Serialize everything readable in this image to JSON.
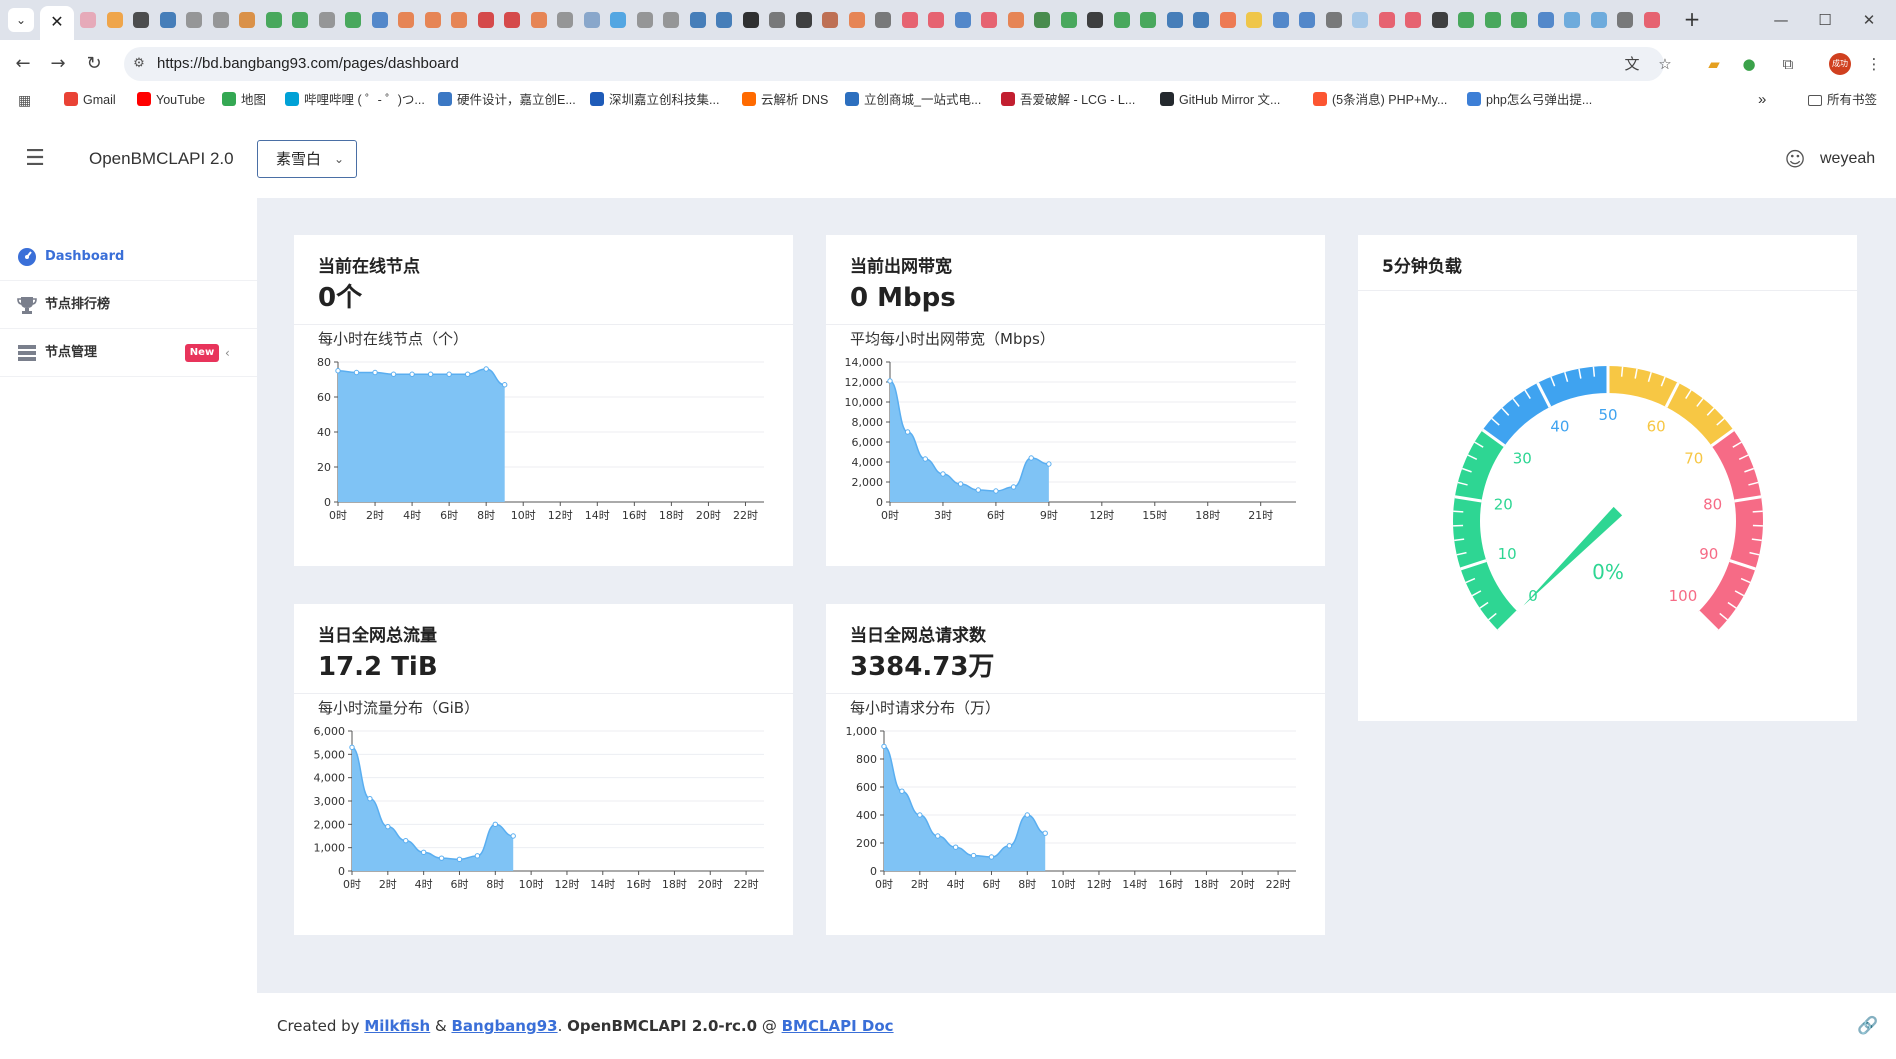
{
  "browser": {
    "tab_close": "✕",
    "tab_list": "⌄",
    "url": "https://bd.bangbang93.com/pages/dashboard",
    "profile_initial": "成功",
    "bookmarks": [
      {
        "label": "Gmail",
        "color": "#e94235"
      },
      {
        "label": "YouTube",
        "color": "#ff0000"
      },
      {
        "label": "地图",
        "color": "#34a853"
      },
      {
        "label": "哔哩哔哩 ( ゜- ゜)つ...",
        "color": "#00a1d6"
      },
      {
        "label": "硬件设计，嘉立创E...",
        "color": "#3b78c4"
      },
      {
        "label": "深圳嘉立创科技集...",
        "color": "#1e5bb8"
      },
      {
        "label": "云解析 DNS",
        "color": "#ff6a00"
      },
      {
        "label": "立创商城_一站式电...",
        "color": "#2c6fbf"
      },
      {
        "label": "吾爱破解 - LCG - L...",
        "color": "#c21f30"
      },
      {
        "label": "GitHub Mirror 文...",
        "color": "#24292e"
      },
      {
        "label": "(5条消息) PHP+My...",
        "color": "#fc5531"
      },
      {
        "label": "php怎么弓弹出提...",
        "color": "#3d7fd6"
      }
    ],
    "more_bookmarks": "»",
    "all_bookmarks": "所有书签"
  },
  "header": {
    "app_title": "OpenBMCLAPI 2.0",
    "theme_value": "素雪白",
    "user_name": "weyeah"
  },
  "sidebar": {
    "items": [
      {
        "label": "Dashboard",
        "icon": "dashboard-icon",
        "color": "#3a6fd8"
      },
      {
        "label": "节点排行榜",
        "icon": "trophy-icon",
        "color": "#7a7f8c"
      },
      {
        "label": "节点管理",
        "icon": "list-icon",
        "color": "#7a7f8c",
        "badge": "New"
      }
    ]
  },
  "cards": {
    "online_nodes": {
      "title": "当前在线节点",
      "value": "0个",
      "chart_title": "每小时在线节点（个）"
    },
    "bandwidth": {
      "title": "当前出网带宽",
      "value": "0 Mbps",
      "chart_title": "平均每小时出网带宽（Mbps）"
    },
    "load": {
      "title": "5分钟负载",
      "gauge_value": "0%",
      "gauge_percent": 0
    },
    "traffic": {
      "title": "当日全网总流量",
      "value": "17.2 TiB",
      "chart_title": "每小时流量分布（GiB）"
    },
    "requests": {
      "title": "当日全网总请求数",
      "value": "3384.73万",
      "chart_title": "每小时请求分布（万）"
    }
  },
  "chart_data": [
    {
      "type": "area",
      "x_ticks": [
        "0时",
        "2时",
        "4时",
        "6时",
        "8时",
        "10时",
        "12时",
        "14时",
        "16时",
        "18时",
        "20时",
        "22时"
      ],
      "x_max": 23,
      "x": [
        0,
        1,
        2,
        3,
        4,
        5,
        6,
        7,
        8,
        9
      ],
      "values": [
        75,
        74,
        74,
        73,
        73,
        73,
        73,
        73,
        76,
        67
      ],
      "ylim": [
        0,
        80
      ],
      "y_ticks": [
        "0",
        "20",
        "40",
        "60",
        "80"
      ],
      "color": "#7fc3f5"
    },
    {
      "type": "area",
      "x_ticks": [
        "0时",
        "3时",
        "6时",
        "9时",
        "12时",
        "15时",
        "18时",
        "21时"
      ],
      "x_max": 23,
      "x": [
        0,
        1,
        2,
        3,
        4,
        5,
        6,
        7,
        8,
        9
      ],
      "values": [
        12100,
        7000,
        4300,
        2800,
        1800,
        1200,
        1100,
        1500,
        4400,
        3800
      ],
      "ylim": [
        0,
        14000
      ],
      "y_ticks": [
        "0",
        "2,000",
        "4,000",
        "6,000",
        "8,000",
        "10,000",
        "12,000",
        "14,000"
      ],
      "color": "#7fc3f5"
    },
    {
      "type": "area",
      "x_ticks": [
        "0时",
        "2时",
        "4时",
        "6时",
        "8时",
        "10时",
        "12时",
        "14时",
        "16时",
        "18时",
        "20时",
        "22时"
      ],
      "x_max": 23,
      "x": [
        0,
        1,
        2,
        3,
        4,
        5,
        6,
        7,
        8,
        9
      ],
      "values": [
        5300,
        3100,
        1900,
        1300,
        800,
        550,
        500,
        650,
        2000,
        1500
      ],
      "ylim": [
        0,
        6000
      ],
      "y_ticks": [
        "0",
        "1,000",
        "2,000",
        "3,000",
        "4,000",
        "5,000",
        "6,000"
      ],
      "color": "#7fc3f5"
    },
    {
      "type": "area",
      "x_ticks": [
        "0时",
        "2时",
        "4时",
        "6时",
        "8时",
        "10时",
        "12时",
        "14时",
        "16时",
        "18时",
        "20时",
        "22时"
      ],
      "x_max": 23,
      "x": [
        0,
        1,
        2,
        3,
        4,
        5,
        6,
        7,
        8,
        9
      ],
      "values": [
        890,
        570,
        400,
        250,
        170,
        110,
        100,
        180,
        400,
        270
      ],
      "ylim": [
        0,
        1000
      ],
      "y_ticks": [
        "0",
        "200",
        "400",
        "600",
        "800",
        "1,000"
      ],
      "color": "#7fc3f5"
    },
    {
      "type": "gauge",
      "value": 0,
      "min": 0,
      "max": 100,
      "labels": [
        "0",
        "10",
        "20",
        "30",
        "40",
        "50",
        "60",
        "70",
        "80",
        "90",
        "100"
      ],
      "bands": [
        {
          "to": 0.3,
          "color": "#2ed693"
        },
        {
          "to": 0.5,
          "color": "#3fa3f0"
        },
        {
          "to": 0.7,
          "color": "#f7c744"
        },
        {
          "to": 1.0,
          "color": "#f66b86"
        }
      ]
    }
  ],
  "footer": {
    "prefix": "Created by ",
    "author1": "Milkfish",
    "amp": " & ",
    "author2": "Bangbang93",
    "middle": ". ",
    "version": "OpenBMCLAPI 2.0-rc.0",
    "at": " @ ",
    "doc": "BMCLAPI Doc"
  }
}
